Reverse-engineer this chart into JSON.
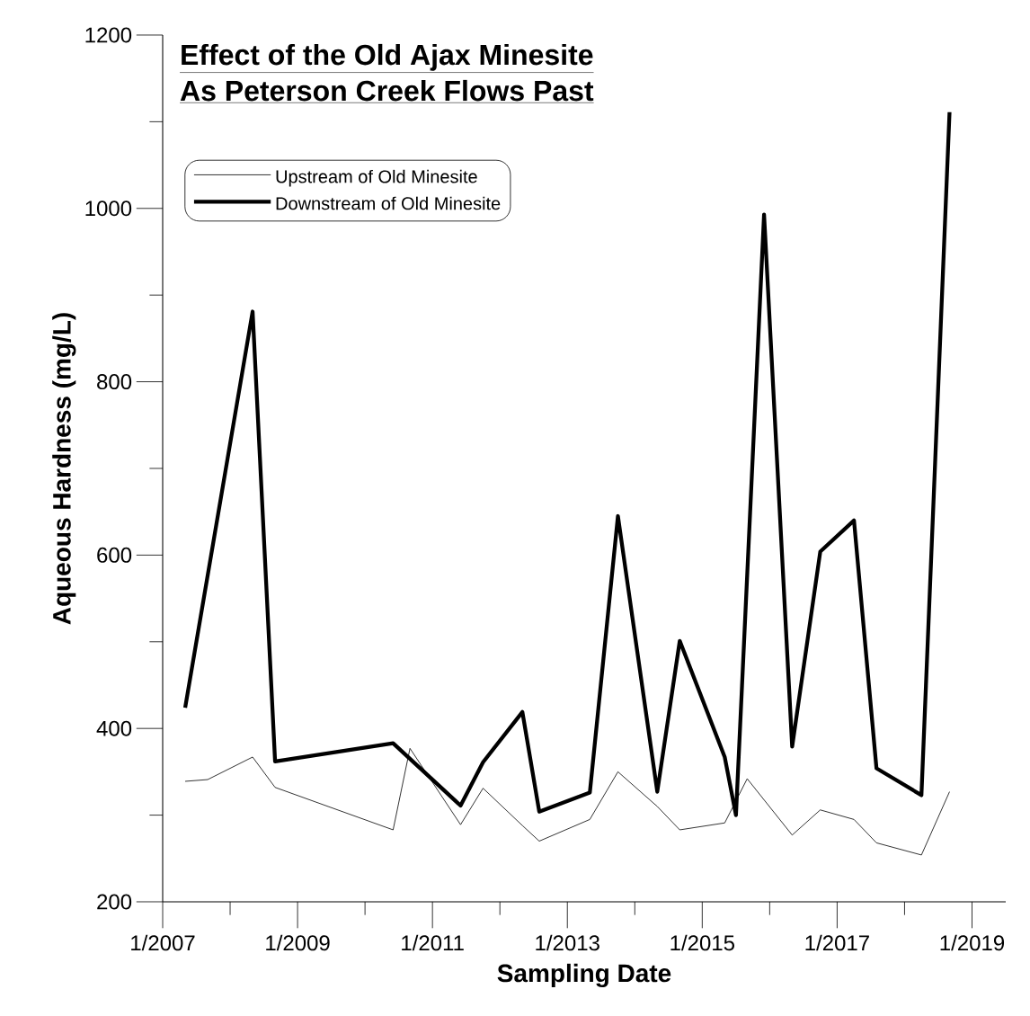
{
  "chart_data": {
    "type": "line",
    "title": "Effect of the Old Ajax Minesite",
    "subtitle": "As Peterson Creek Flows Past",
    "xlabel": "Sampling Date",
    "ylabel": "Aqueous Hardness (mg/L)",
    "xlim": [
      "2007-01",
      "2019-07"
    ],
    "ylim": [
      200,
      1200
    ],
    "xticks": [
      {
        "value": "2007-01",
        "label": "1/2007"
      },
      {
        "value": "2008-01",
        "label": null
      },
      {
        "value": "2009-01",
        "label": "1/2009"
      },
      {
        "value": "2010-01",
        "label": null
      },
      {
        "value": "2011-01",
        "label": "1/2011"
      },
      {
        "value": "2012-01",
        "label": null
      },
      {
        "value": "2013-01",
        "label": "1/2013"
      },
      {
        "value": "2014-01",
        "label": null
      },
      {
        "value": "2015-01",
        "label": "1/2015"
      },
      {
        "value": "2016-01",
        "label": null
      },
      {
        "value": "2017-01",
        "label": "1/2017"
      },
      {
        "value": "2018-01",
        "label": null
      },
      {
        "value": "2019-01",
        "label": "1/2019"
      }
    ],
    "yticks": [
      200,
      {
        "value": 300,
        "label": null
      },
      400,
      {
        "value": 500,
        "label": null
      },
      600,
      {
        "value": 700,
        "label": null
      },
      800,
      {
        "value": 900,
        "label": null
      },
      1000,
      {
        "value": 1100,
        "label": null
      },
      1200
    ],
    "legend": "top left",
    "series": [
      {
        "name": "Upstream of Old Minesite",
        "color": "#000000",
        "x": [
          "2007-05",
          "2007-09",
          "2008-05",
          "2008-09",
          "2010-06",
          "2010-09",
          "2011-06",
          "2011-10",
          "2012-05",
          "2012-08",
          "2013-05",
          "2013-10",
          "2014-05",
          "2014-09",
          "2015-05",
          "2015-09",
          "2016-05",
          "2016-10",
          "2017-04",
          "2017-08",
          "2018-04",
          "2018-09"
        ],
        "values": [
          339,
          341,
          367,
          332,
          283,
          377,
          289,
          331,
          288,
          270,
          295,
          350,
          310,
          283,
          291,
          342,
          277,
          306,
          295,
          268,
          254,
          327
        ]
      },
      {
        "name": "Downstream of Old Minesite",
        "color": "#000000",
        "x": [
          "2007-05",
          "2008-05",
          "2008-09",
          "2010-06",
          "2011-06",
          "2011-10",
          "2012-05",
          "2012-08",
          "2013-05",
          "2013-10",
          "2014-05",
          "2014-09",
          "2015-05",
          "2015-07",
          "2015-12",
          "2016-05",
          "2016-10",
          "2017-04",
          "2017-08",
          "2018-04",
          "2018-09"
        ],
        "values": [
          424,
          881,
          362,
          383,
          311,
          361,
          419,
          304,
          326,
          645,
          327,
          501,
          367,
          300,
          993,
          379,
          604,
          640,
          354,
          323,
          1111
        ]
      }
    ]
  }
}
